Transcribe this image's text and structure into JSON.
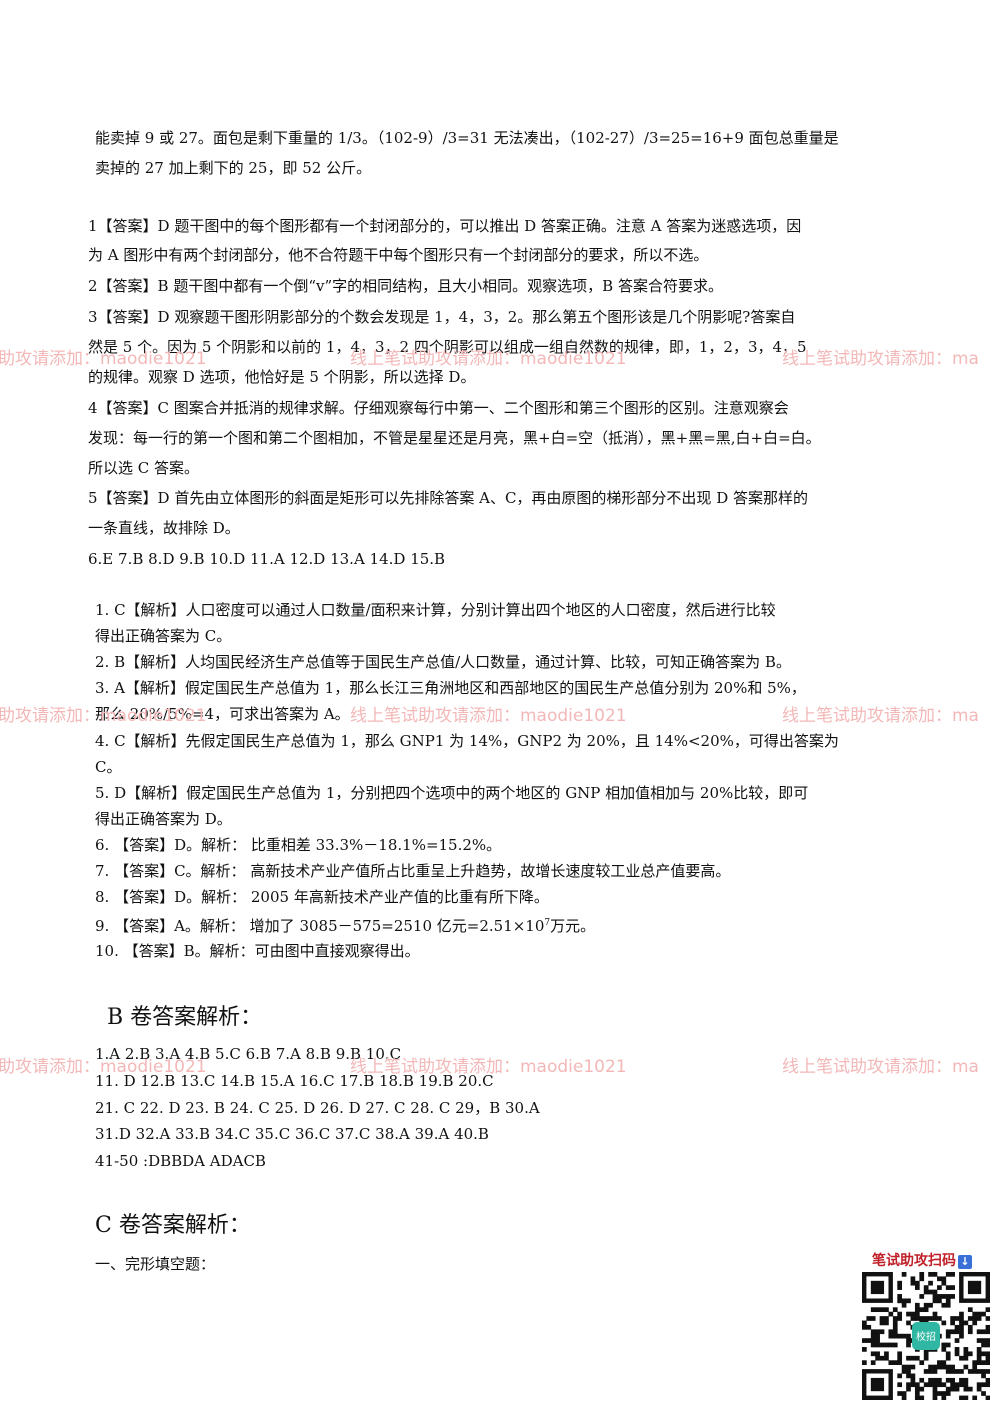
{
  "intro": [
    "能卖掉 9 或 27。面包是剩下重量的 1/3。（102-9）/3=31 无法凑出，（102-27）/3=25=16+9 面包总重量是",
    "卖掉的 27 加上剩下的 25，即 52 公斤。"
  ],
  "section1": [
    "1【答案】D 题干图中的每个图形都有一个封闭部分的，可以推出 D 答案正确。注意 A 答案为迷惑选项，因",
    "为 A 图形中有两个封闭部分，他不合符题干中每个图形只有一个封闭部分的要求，所以不选。",
    "2【答案】B 题干图中都有一个倒“v”字的相同结构，且大小相同。观察选项，B 答案合符要求。",
    "3【答案】D 观察题干图形阴影部分的个数会发现是 1，4，3，2。那么第五个图形该是几个阴影呢?答案自",
    "然是 5 个。因为 5 个阴影和以前的 1，4，3，2 四个阴影可以组成一组自然数的规律，即，1，2，3，4，5",
    "的规律。观察 D 选项，他恰好是 5 个阴影，所以选择 D。",
    "4【答案】C 图案合并抵消的规律求解。仔细观察每行中第一、二个图形和第三个图形的区别。注意观察会",
    "发现：每一行的第一个图和第二个图相加，不管是星星还是月亮，黑+白=空（抵消），黑+黑=黑,白+白=白。",
    "所以选 C 答案。",
    "5【答案】D 首先由立体图形的斜面是矩形可以先排除答案 A、C，再由原图的梯形部分不出现 D 答案那样的",
    "一条直线，故排除 D。",
    "6.E   7.B   8.D 9.B   10.D   11.A   12.D   13.A   14.D    15.B"
  ],
  "section2": [
    "1. C【解析】人口密度可以通过人口数量/面积来计算，分别计算出四个地区的人口密度，然后进行比较",
    "得出正确答案为 C。",
    "2. B【解析】人均国民经济生产总值等于国民生产总值/人口数量，通过计算、比较，可知正确答案为 B。",
    "3. A【解析】假定国民生产总值为 1，那么长江三角洲地区和西部地区的国民生产总值分别为 20%和 5%，",
    "那么 20%/5%=4，可求出答案为 A。",
    "4. C【解析】先假定国民生产总值为 1，那么 GNP1 为 14%，GNP2 为 20%，且 14%<20%，可得出答案为",
    "C。",
    "5. D【解析】假定国民生产总值为 1，分别把四个选项中的两个地区的 GNP 相加值相加与 20%比较，即可",
    "得出正确答案为 D。",
    "6. 【答案】D。解析：  比重相差 33.3%－18.1%=15.2%。",
    "7. 【答案】C。解析：  高新技术产业产值所占比重呈上升趋势，故增长速度较工业总产值要高。",
    "8. 【答案】D。解析：  2005 年高新技术产业产值的比重有所下降。"
  ],
  "line9": {
    "pre": "9. 【答案】A。解析：  增加了 3085－575=2510 亿元=2.51×10",
    "sup": "7",
    "post": "万元。"
  },
  "line10": "10. 【答案】B。解析：可由图中直接观察得出。",
  "heading_b": "B 卷答案解析：",
  "answers_b": [
    "1.A 2.B 3.A 4.B 5.C 6.B 7.A 8.B 9.B 10.C",
    "11. D    12.B    13.C    14.B    15.A    16.C    17.B    18.B    19.B    20.C",
    "21. C      22. D      23. B      24. C      25. D   26. D      27. C      28. C   29，B      30.A",
    "31.D 32.A 33.B 34.C 35.C 36.C 37.C 38.A 39.A   40.B",
    "41-50 :DBBDA   ADACB"
  ],
  "heading_c": "C 卷答案解析：",
  "cloze_label": "一、完形填空题：",
  "watermark": {
    "left": "助攻请添加：maodie1021",
    "center": "线上笔试助攻请添加：maodie1021",
    "right": "线上笔试助攻请添加：ma"
  },
  "qr": {
    "title": "笔试助攻扫码",
    "arrow_icon": "down-arrow-icon",
    "center_label": "校招"
  },
  "colors": {
    "watermark": "#f3b7b7",
    "qr_title": "#c0202a",
    "qr_center": "#2fb7a4"
  }
}
